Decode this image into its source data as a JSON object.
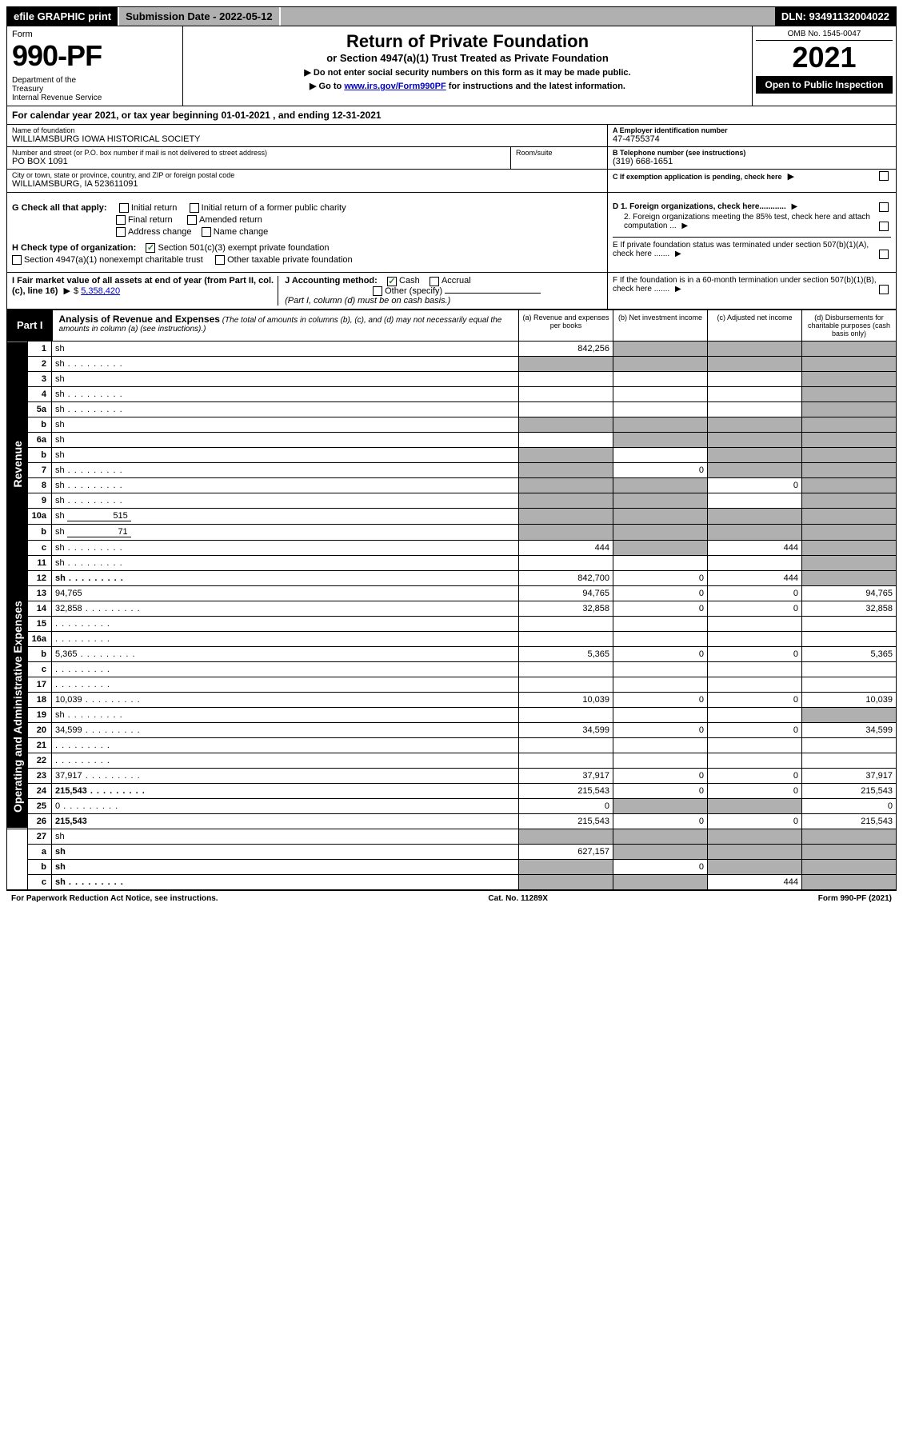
{
  "topbar": {
    "efile": "efile GRAPHIC print",
    "submission_label": "Submission Date - 2022-05-12",
    "dln": "DLN: 93491132004022"
  },
  "header": {
    "form_word": "Form",
    "form_number": "990-PF",
    "dept": "Department of the Treasury\nInternal Revenue Service",
    "title": "Return of Private Foundation",
    "subtitle": "or Section 4947(a)(1) Trust Treated as Private Foundation",
    "instr1": "▶ Do not enter social security numbers on this form as it may be made public.",
    "instr2_prefix": "▶ Go to ",
    "instr2_link": "www.irs.gov/Form990PF",
    "instr2_suffix": " for instructions and the latest information.",
    "omb": "OMB No. 1545-0047",
    "year": "2021",
    "open": "Open to Public Inspection"
  },
  "calyear": "For calendar year 2021, or tax year beginning 01-01-2021          , and ending 12-31-2021",
  "ident": {
    "name_label": "Name of foundation",
    "name": "WILLIAMSBURG IOWA HISTORICAL SOCIETY",
    "street_label": "Number and street (or P.O. box number if mail is not delivered to street address)",
    "street": "PO BOX 1091",
    "room_label": "Room/suite",
    "city_label": "City or town, state or province, country, and ZIP or foreign postal code",
    "city": "WILLIAMSBURG, IA  523611091",
    "A_label": "A Employer identification number",
    "A_val": "47-4755374",
    "B_label": "B Telephone number (see instructions)",
    "B_val": "(319) 668-1651",
    "C_label": "C If exemption application is pending, check here"
  },
  "checks": {
    "G_label": "G Check all that apply:",
    "g_items": [
      "Initial return",
      "Initial return of a former public charity",
      "Final return",
      "Amended return",
      "Address change",
      "Name change"
    ],
    "H_label": "H Check type of organization:",
    "h1": "Section 501(c)(3) exempt private foundation",
    "h2": "Section 4947(a)(1) nonexempt charitable trust",
    "h3": "Other taxable private foundation",
    "D1": "D 1. Foreign organizations, check here............",
    "D2": "2. Foreign organizations meeting the 85% test, check here and attach computation ...",
    "E": "E  If private foundation status was terminated under section 507(b)(1)(A), check here .......",
    "F": "F  If the foundation is in a 60-month termination under section 507(b)(1)(B), check here .......",
    "I_label": "I Fair market value of all assets at end of year (from Part II, col. (c), line 16)",
    "I_val": "5,358,420",
    "J_label": "J Accounting method:",
    "J_cash": "Cash",
    "J_accrual": "Accrual",
    "J_other": "Other (specify)",
    "J_note": "(Part I, column (d) must be on cash basis.)"
  },
  "part1": {
    "label": "Part I",
    "title": "Analysis of Revenue and Expenses",
    "title_note": "(The total of amounts in columns (b), (c), and (d) may not necessarily equal the amounts in column (a) (see instructions).)",
    "col_a": "(a)   Revenue and expenses per books",
    "col_b": "(b)   Net investment income",
    "col_c": "(c)   Adjusted net income",
    "col_d": "(d)   Disbursements for charitable purposes (cash basis only)"
  },
  "side_rev": "Revenue",
  "side_exp": "Operating and Administrative Expenses",
  "rows": [
    {
      "n": "1",
      "d": "sh",
      "a": "842,256",
      "b": "sh",
      "c": "sh"
    },
    {
      "n": "2",
      "d": "sh",
      "dots": true,
      "a": "sh",
      "b": "sh",
      "c": "sh"
    },
    {
      "n": "3",
      "d": "sh",
      "a": "",
      "b": "",
      "c": ""
    },
    {
      "n": "4",
      "d": "sh",
      "dots": true,
      "a": "",
      "b": "",
      "c": ""
    },
    {
      "n": "5a",
      "d": "sh",
      "dots": true,
      "a": "",
      "b": "",
      "c": ""
    },
    {
      "n": "b",
      "d": "sh",
      "a": "sh",
      "b": "sh",
      "c": "sh"
    },
    {
      "n": "6a",
      "d": "sh",
      "a": "",
      "b": "sh",
      "c": "sh"
    },
    {
      "n": "b",
      "d": "sh",
      "a": "sh",
      "b": "",
      "c": "sh"
    },
    {
      "n": "7",
      "d": "sh",
      "dots": true,
      "a": "sh",
      "b": "0",
      "c": "sh"
    },
    {
      "n": "8",
      "d": "sh",
      "dots": true,
      "a": "sh",
      "b": "sh",
      "c": "0"
    },
    {
      "n": "9",
      "d": "sh",
      "dots": true,
      "a": "sh",
      "b": "sh",
      "c": ""
    },
    {
      "n": "10a",
      "d": "sh",
      "inline": "515",
      "a": "sh",
      "b": "sh",
      "c": "sh"
    },
    {
      "n": "b",
      "d": "sh",
      "dots": true,
      "inline": "71",
      "a": "sh",
      "b": "sh",
      "c": "sh"
    },
    {
      "n": "c",
      "d": "sh",
      "dots": true,
      "a": "444",
      "b": "sh",
      "c": "444"
    },
    {
      "n": "11",
      "d": "sh",
      "dots": true,
      "a": "",
      "b": "",
      "c": ""
    },
    {
      "n": "12",
      "d": "sh",
      "dots": true,
      "bold": true,
      "a": "842,700",
      "b": "0",
      "c": "444"
    }
  ],
  "exp_rows": [
    {
      "n": "13",
      "d": "94,765",
      "a": "94,765",
      "b": "0",
      "c": "0"
    },
    {
      "n": "14",
      "d": "32,858",
      "dots": true,
      "a": "32,858",
      "b": "0",
      "c": "0"
    },
    {
      "n": "15",
      "d": "",
      "dots": true,
      "a": "",
      "b": "",
      "c": ""
    },
    {
      "n": "16a",
      "d": "",
      "dots": true,
      "a": "",
      "b": "",
      "c": ""
    },
    {
      "n": "b",
      "d": "5,365",
      "dots": true,
      "a": "5,365",
      "b": "0",
      "c": "0"
    },
    {
      "n": "c",
      "d": "",
      "dots": true,
      "a": "",
      "b": "",
      "c": ""
    },
    {
      "n": "17",
      "d": "",
      "dots": true,
      "a": "",
      "b": "",
      "c": ""
    },
    {
      "n": "18",
      "d": "10,039",
      "dots": true,
      "a": "10,039",
      "b": "0",
      "c": "0"
    },
    {
      "n": "19",
      "d": "sh",
      "dots": true,
      "a": "",
      "b": "",
      "c": ""
    },
    {
      "n": "20",
      "d": "34,599",
      "dots": true,
      "a": "34,599",
      "b": "0",
      "c": "0"
    },
    {
      "n": "21",
      "d": "",
      "dots": true,
      "a": "",
      "b": "",
      "c": ""
    },
    {
      "n": "22",
      "d": "",
      "dots": true,
      "a": "",
      "b": "",
      "c": ""
    },
    {
      "n": "23",
      "d": "37,917",
      "dots": true,
      "a": "37,917",
      "b": "0",
      "c": "0"
    },
    {
      "n": "24",
      "d": "215,543",
      "dots": true,
      "bold": true,
      "a": "215,543",
      "b": "0",
      "c": "0"
    },
    {
      "n": "25",
      "d": "0",
      "dots": true,
      "a": "0",
      "b": "sh",
      "c": "sh"
    },
    {
      "n": "26",
      "d": "215,543",
      "bold": true,
      "a": "215,543",
      "b": "0",
      "c": "0"
    }
  ],
  "final_rows": [
    {
      "n": "27",
      "d": "sh",
      "a": "sh",
      "b": "sh",
      "c": "sh"
    },
    {
      "n": "a",
      "d": "sh",
      "bold": true,
      "a": "627,157",
      "b": "sh",
      "c": "sh"
    },
    {
      "n": "b",
      "d": "sh",
      "bold": true,
      "a": "sh",
      "b": "0",
      "c": "sh"
    },
    {
      "n": "c",
      "d": "sh",
      "dots": true,
      "bold": true,
      "a": "sh",
      "b": "sh",
      "c": "444"
    }
  ],
  "footer": {
    "left": "For Paperwork Reduction Act Notice, see instructions.",
    "center": "Cat. No. 11289X",
    "right": "Form 990-PF (2021)"
  },
  "colors": {
    "shaded": "#b0b0b0",
    "link": "#0000cc",
    "check": "#2e7d32"
  }
}
